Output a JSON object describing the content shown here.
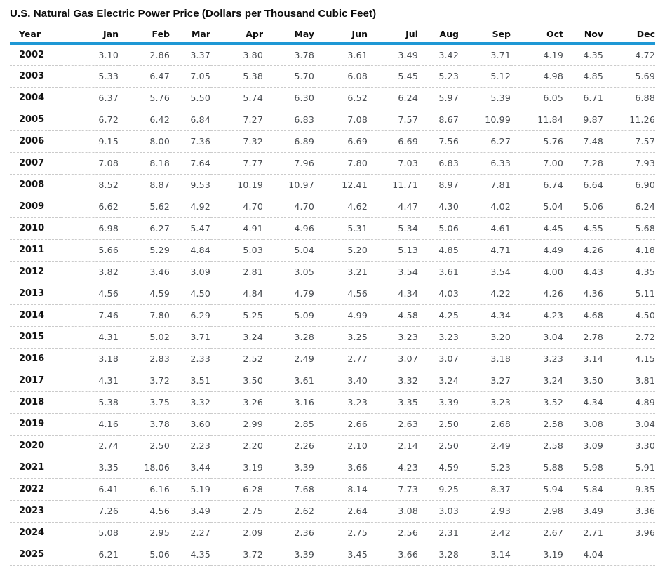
{
  "title": "U.S. Natural Gas Electric Power Price (Dollars per Thousand Cubic Feet)",
  "unit": "Dollars per Thousand Cubic Feet",
  "colors": {
    "accent_rule": "#1e98d5",
    "row_divider": "#cbcbcb",
    "value_text": "#474b50",
    "heading_text": "#111111",
    "background": "#ffffff"
  },
  "chart_data": {
    "type": "table",
    "title": "U.S. Natural Gas Electric Power Price (Dollars per Thousand Cubic Feet)",
    "year_label": "Year",
    "months": [
      "Jan",
      "Feb",
      "Mar",
      "Apr",
      "May",
      "Jun",
      "Jul",
      "Aug",
      "Sep",
      "Oct",
      "Nov",
      "Dec"
    ],
    "rows": [
      {
        "year": "2002",
        "values": [
          3.1,
          2.86,
          3.37,
          3.8,
          3.78,
          3.61,
          3.49,
          3.42,
          3.71,
          4.19,
          4.35,
          4.72
        ]
      },
      {
        "year": "2003",
        "values": [
          5.33,
          6.47,
          7.05,
          5.38,
          5.7,
          6.08,
          5.45,
          5.23,
          5.12,
          4.98,
          4.85,
          5.69
        ]
      },
      {
        "year": "2004",
        "values": [
          6.37,
          5.76,
          5.5,
          5.74,
          6.3,
          6.52,
          6.24,
          5.97,
          5.39,
          6.05,
          6.71,
          6.88
        ]
      },
      {
        "year": "2005",
        "values": [
          6.72,
          6.42,
          6.84,
          7.27,
          6.83,
          7.08,
          7.57,
          8.67,
          10.99,
          11.84,
          9.87,
          11.26
        ]
      },
      {
        "year": "2006",
        "values": [
          9.15,
          8.0,
          7.36,
          7.32,
          6.89,
          6.69,
          6.69,
          7.56,
          6.27,
          5.76,
          7.48,
          7.57
        ]
      },
      {
        "year": "2007",
        "values": [
          7.08,
          8.18,
          7.64,
          7.77,
          7.96,
          7.8,
          7.03,
          6.83,
          6.33,
          7.0,
          7.28,
          7.93
        ]
      },
      {
        "year": "2008",
        "values": [
          8.52,
          8.87,
          9.53,
          10.19,
          10.97,
          12.41,
          11.71,
          8.97,
          7.81,
          6.74,
          6.64,
          6.9
        ]
      },
      {
        "year": "2009",
        "values": [
          6.62,
          5.62,
          4.92,
          4.7,
          4.7,
          4.62,
          4.47,
          4.3,
          4.02,
          5.04,
          5.06,
          6.24
        ]
      },
      {
        "year": "2010",
        "values": [
          6.98,
          6.27,
          5.47,
          4.91,
          4.96,
          5.31,
          5.34,
          5.06,
          4.61,
          4.45,
          4.55,
          5.68
        ]
      },
      {
        "year": "2011",
        "values": [
          5.66,
          5.29,
          4.84,
          5.03,
          5.04,
          5.2,
          5.13,
          4.85,
          4.71,
          4.49,
          4.26,
          4.18
        ]
      },
      {
        "year": "2012",
        "values": [
          3.82,
          3.46,
          3.09,
          2.81,
          3.05,
          3.21,
          3.54,
          3.61,
          3.54,
          4.0,
          4.43,
          4.35
        ]
      },
      {
        "year": "2013",
        "values": [
          4.56,
          4.59,
          4.5,
          4.84,
          4.79,
          4.56,
          4.34,
          4.03,
          4.22,
          4.26,
          4.36,
          5.11
        ]
      },
      {
        "year": "2014",
        "values": [
          7.46,
          7.8,
          6.29,
          5.25,
          5.09,
          4.99,
          4.58,
          4.25,
          4.34,
          4.23,
          4.68,
          4.5
        ]
      },
      {
        "year": "2015",
        "values": [
          4.31,
          5.02,
          3.71,
          3.24,
          3.28,
          3.25,
          3.23,
          3.23,
          3.2,
          3.04,
          2.78,
          2.72
        ]
      },
      {
        "year": "2016",
        "values": [
          3.18,
          2.83,
          2.33,
          2.52,
          2.49,
          2.77,
          3.07,
          3.07,
          3.18,
          3.23,
          3.14,
          4.15
        ]
      },
      {
        "year": "2017",
        "values": [
          4.31,
          3.72,
          3.51,
          3.5,
          3.61,
          3.4,
          3.32,
          3.24,
          3.27,
          3.24,
          3.5,
          3.81
        ]
      },
      {
        "year": "2018",
        "values": [
          5.38,
          3.75,
          3.32,
          3.26,
          3.16,
          3.23,
          3.35,
          3.39,
          3.23,
          3.52,
          4.34,
          4.89
        ]
      },
      {
        "year": "2019",
        "values": [
          4.16,
          3.78,
          3.6,
          2.99,
          2.85,
          2.66,
          2.63,
          2.5,
          2.68,
          2.58,
          3.08,
          3.04
        ]
      },
      {
        "year": "2020",
        "values": [
          2.74,
          2.5,
          2.23,
          2.2,
          2.26,
          2.1,
          2.14,
          2.5,
          2.49,
          2.58,
          3.09,
          3.3
        ]
      },
      {
        "year": "2021",
        "values": [
          3.35,
          18.06,
          3.44,
          3.19,
          3.39,
          3.66,
          4.23,
          4.59,
          5.23,
          5.88,
          5.98,
          5.91
        ]
      },
      {
        "year": "2022",
        "values": [
          6.41,
          6.16,
          5.19,
          6.28,
          7.68,
          8.14,
          7.73,
          9.25,
          8.37,
          5.94,
          5.84,
          9.35
        ]
      },
      {
        "year": "2023",
        "values": [
          7.26,
          4.56,
          3.49,
          2.75,
          2.62,
          2.64,
          3.08,
          3.03,
          2.93,
          2.98,
          3.49,
          3.36
        ]
      },
      {
        "year": "2024",
        "values": [
          5.08,
          2.95,
          2.27,
          2.09,
          2.36,
          2.75,
          2.56,
          2.31,
          2.42,
          2.67,
          2.71,
          3.96
        ]
      },
      {
        "year": "2025",
        "values": [
          6.21,
          5.06,
          4.35,
          3.72,
          3.39,
          3.45,
          3.66,
          3.28,
          3.14,
          3.19,
          4.04,
          null
        ]
      }
    ]
  }
}
